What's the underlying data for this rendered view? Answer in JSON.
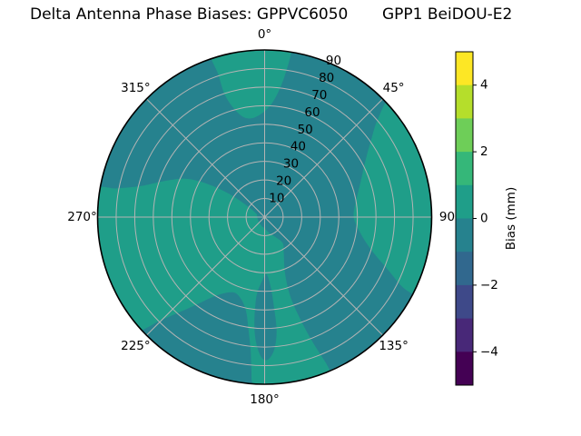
{
  "figure": {
    "title_left": "Delta Antenna Phase Biases: GPPVC6050",
    "title_right": "GPP1 BeiDOU-E2",
    "background": "#ffffff"
  },
  "chart_data": {
    "type": "polar_filled_contour",
    "title": "Delta Antenna Phase Biases: GPPVC6050      GPP1 BeiDOU-E2",
    "angular_axis": {
      "tick_labels": [
        "0°",
        "45°",
        "90",
        "135°",
        "180°",
        "225°",
        "270°",
        "315°"
      ],
      "tick_angles_deg": [
        0,
        45,
        90,
        135,
        180,
        225,
        270,
        315
      ],
      "zero_location": "top",
      "direction": "clockwise"
    },
    "radial_axis": {
      "tick_labels": [
        "10",
        "20",
        "30",
        "40",
        "50",
        "60",
        "70",
        "80",
        "90"
      ],
      "tick_values": [
        10,
        20,
        30,
        40,
        50,
        60,
        70,
        80,
        90
      ],
      "max": 90,
      "label_angle_deg": 22.5
    },
    "grid": {
      "ring_values": [
        10,
        20,
        30,
        40,
        50,
        60,
        70,
        80
      ],
      "spoke_angles_deg": [
        0,
        45,
        90,
        135,
        180,
        225,
        270,
        315
      ],
      "color": "#b4b4b4",
      "spine_color": "#000000"
    },
    "colorbar": {
      "label": "Bias (mm)",
      "tick_labels": [
        "4",
        "2",
        "0",
        "−2",
        "−4"
      ],
      "tick_values": [
        4,
        2,
        0,
        -2,
        -4
      ],
      "vmin": -5,
      "vmax": 5,
      "n_segments": 10,
      "segment_colors_top_to_bottom": [
        "#fde725",
        "#b5de2b",
        "#6ece58",
        "#35b779",
        "#1f9e89",
        "#26828e",
        "#31688e",
        "#3e4989",
        "#482878",
        "#440154"
      ]
    },
    "field": {
      "units": "mm",
      "base_level": {
        "bin": "-1 to 0",
        "color": "#26828e"
      },
      "high_level": {
        "bin": "0 to 1",
        "color": "#1f9e89"
      },
      "regions": {
        "west_bottom_center_high": [
          [
            279,
            93
          ],
          [
            266,
            93
          ],
          [
            252,
            93
          ],
          [
            240,
            93
          ],
          [
            229,
            93
          ],
          [
            225,
            78
          ],
          [
            219,
            62
          ],
          [
            212,
            50
          ],
          [
            203,
            44
          ],
          [
            196,
            46
          ],
          [
            191,
            52
          ],
          [
            188,
            62
          ],
          [
            186,
            72
          ],
          [
            185,
            82
          ],
          [
            184,
            90
          ],
          [
            180,
            90
          ],
          [
            177,
            92
          ],
          [
            172,
            93
          ],
          [
            165,
            93
          ],
          [
            158,
            93
          ],
          [
            157,
            88
          ],
          [
            159,
            72
          ],
          [
            161,
            56
          ],
          [
            162,
            44
          ],
          [
            160,
            32
          ],
          [
            152,
            22
          ],
          [
            145,
            17
          ],
          [
            152,
            12
          ],
          [
            163,
            9
          ],
          [
            173,
            7
          ],
          [
            180,
            6
          ],
          [
            200,
            5
          ],
          [
            235,
            4
          ],
          [
            270,
            4
          ],
          [
            293,
            5
          ],
          [
            303,
            12
          ],
          [
            303,
            24
          ],
          [
            300,
            36
          ],
          [
            296,
            47
          ],
          [
            290,
            57
          ],
          [
            284,
            69
          ],
          [
            281,
            81
          ]
        ],
        "north_high": [
          [
            342,
            93
          ],
          [
            350,
            93
          ],
          [
            358,
            93
          ],
          [
            5,
            93
          ],
          [
            9,
            93
          ],
          [
            8,
            76
          ],
          [
            4,
            62
          ],
          [
            357,
            55
          ],
          [
            350,
            54
          ],
          [
            345,
            59
          ],
          [
            342,
            69
          ],
          [
            342,
            81
          ]
        ],
        "east_rim_high": [
          [
            47,
            93
          ],
          [
            58,
            93
          ],
          [
            70,
            93
          ],
          [
            82,
            93
          ],
          [
            94,
            93
          ],
          [
            105,
            93
          ],
          [
            114,
            93
          ],
          [
            117,
            93
          ],
          [
            117,
            84
          ],
          [
            113,
            72
          ],
          [
            107,
            60
          ],
          [
            99,
            52
          ],
          [
            90,
            48
          ],
          [
            80,
            50
          ],
          [
            70,
            55
          ],
          [
            61,
            62
          ],
          [
            54,
            71
          ],
          [
            49,
            81
          ]
        ],
        "south_low_island": [
          [
            186,
            44
          ],
          [
            182,
            34
          ],
          [
            178,
            31
          ],
          [
            175,
            38
          ],
          [
            174,
            50
          ],
          [
            174,
            62
          ],
          [
            176,
            72
          ],
          [
            179,
            77
          ],
          [
            182,
            74
          ],
          [
            185,
            62
          ]
        ]
      }
    }
  }
}
